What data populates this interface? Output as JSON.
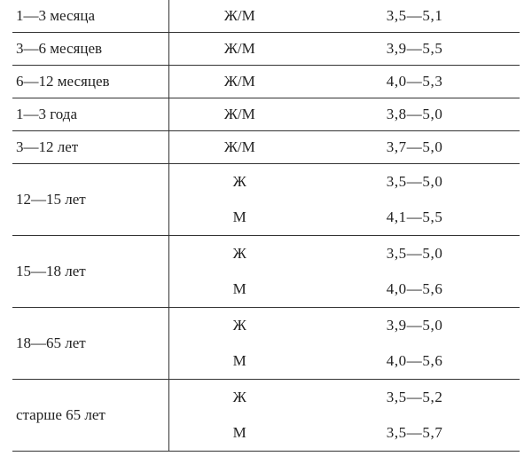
{
  "table": {
    "type": "table",
    "font_family": "serif",
    "font_size": 17,
    "text_color": "#222222",
    "background_color": "#ffffff",
    "border_color": "#333333",
    "columns": [
      "age_range",
      "sex",
      "value_range"
    ],
    "col_widths_percent": [
      31,
      27.6,
      41.4
    ],
    "groups": [
      {
        "age": "1—3 месяца",
        "rows": [
          {
            "sex": "Ж/М",
            "value": "3,5—5,1"
          }
        ]
      },
      {
        "age": "3—6 месяцев",
        "rows": [
          {
            "sex": "Ж/М",
            "value": "3,9—5,5"
          }
        ]
      },
      {
        "age": "6—12 месяцев",
        "rows": [
          {
            "sex": "Ж/М",
            "value": "4,0—5,3"
          }
        ]
      },
      {
        "age": "1—3 года",
        "rows": [
          {
            "sex": "Ж/М",
            "value": "3,8—5,0"
          }
        ]
      },
      {
        "age": "3—12 лет",
        "rows": [
          {
            "sex": "Ж/М",
            "value": "3,7—5,0"
          }
        ]
      },
      {
        "age": "12—15 лет",
        "rows": [
          {
            "sex": "Ж",
            "value": "3,5—5,0"
          },
          {
            "sex": "М",
            "value": "4,1—5,5"
          }
        ]
      },
      {
        "age": "15—18 лет",
        "rows": [
          {
            "sex": "Ж",
            "value": "3,5—5,0"
          },
          {
            "sex": "М",
            "value": "4,0—5,6"
          }
        ]
      },
      {
        "age": "18—65 лет",
        "rows": [
          {
            "sex": "Ж",
            "value": "3,9—5,0"
          },
          {
            "sex": "М",
            "value": "4,0—5,6"
          }
        ]
      },
      {
        "age": "старше 65 лет",
        "rows": [
          {
            "sex": "Ж",
            "value": "3,5—5,2"
          },
          {
            "sex": "М",
            "value": "3,5—5,7"
          }
        ]
      }
    ]
  }
}
